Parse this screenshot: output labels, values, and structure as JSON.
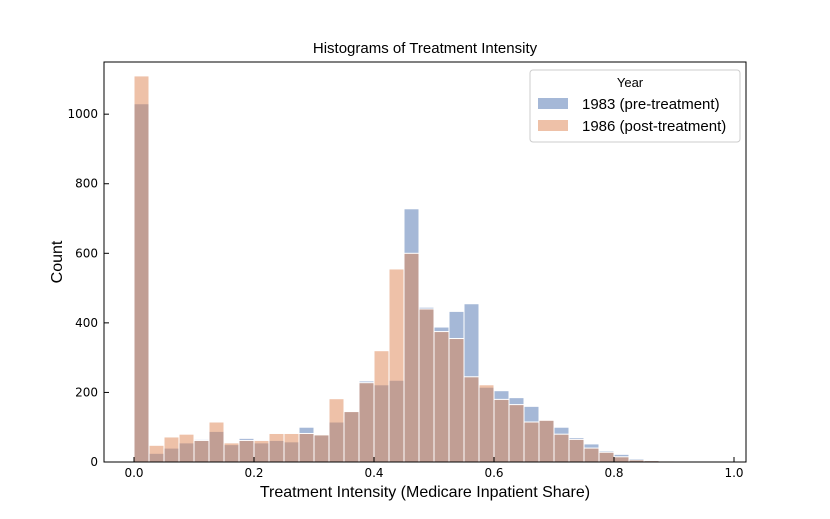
{
  "chart_data": {
    "type": "histogram",
    "title": "Histograms of Treatment Intensity",
    "xlabel": "Treatment Intensity (Medicare Inpatient Share)",
    "ylabel": "Count",
    "xlim": [
      -0.05,
      1.02
    ],
    "ylim": [
      0,
      1150
    ],
    "xticks": [
      0.0,
      0.2,
      0.4,
      0.6,
      0.8,
      1.0
    ],
    "xtick_labels": [
      "0.0",
      "0.2",
      "0.4",
      "0.6",
      "0.8",
      "1.0"
    ],
    "yticks": [
      0,
      200,
      400,
      600,
      800,
      1000
    ],
    "ytick_labels": [
      "0",
      "200",
      "400",
      "600",
      "800",
      "1000"
    ],
    "bin_edges_start": 0.0,
    "bin_width": 0.025,
    "legend": {
      "title": "Year",
      "position": "top-right"
    },
    "series": [
      {
        "name": "1983 (pre-treatment)",
        "color": "#4c72b0",
        "values": [
          1030,
          25,
          40,
          55,
          65,
          88,
          50,
          68,
          55,
          62,
          58,
          100,
          78,
          115,
          145,
          233,
          222,
          235,
          728,
          445,
          388,
          433,
          455,
          215,
          205,
          185,
          160,
          120,
          100,
          70,
          52,
          32,
          22,
          10,
          6,
          3,
          2,
          1,
          1,
          0
        ]
      },
      {
        "name": "1986 (post-treatment)",
        "color": "#dd8452",
        "values": [
          1110,
          48,
          72,
          80,
          62,
          115,
          55,
          62,
          62,
          82,
          82,
          82,
          78,
          182,
          145,
          228,
          320,
          555,
          600,
          440,
          375,
          355,
          245,
          222,
          180,
          165,
          115,
          120,
          80,
          65,
          40,
          28,
          15,
          6,
          4,
          3,
          2,
          1,
          1,
          0
        ]
      }
    ]
  }
}
